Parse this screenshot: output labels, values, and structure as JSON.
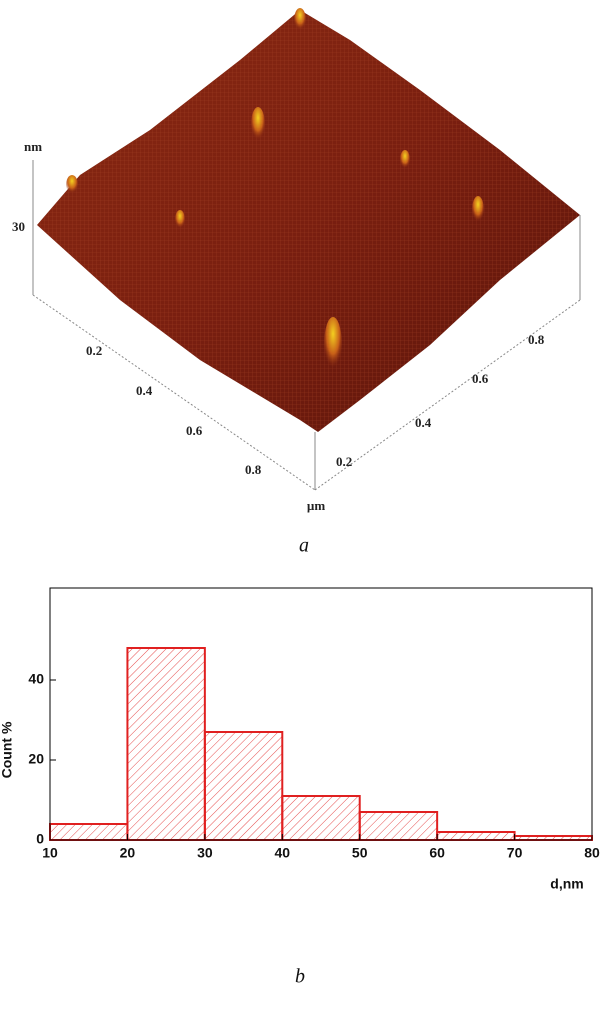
{
  "afm_image": {
    "z_unit": "nm",
    "z_tick": "30",
    "left_ticks": [
      "0.2",
      "0.4",
      "0.6",
      "0.8"
    ],
    "right_ticks": [
      "0.2",
      "0.4",
      "0.6",
      "0.8"
    ],
    "xy_unit": "µm",
    "caption": "a"
  },
  "chart_data": {
    "type": "histogram",
    "caption": "b",
    "x_label": "d,nm",
    "y_label": "Count %",
    "bins": [
      10,
      20,
      30,
      40,
      50,
      60,
      70,
      80
    ],
    "values": [
      4,
      48,
      27,
      11,
      7,
      2,
      1
    ],
    "color": "#e02020",
    "hatch": true,
    "xlim": [
      10,
      80
    ],
    "xticks": [
      10,
      20,
      30,
      40,
      50,
      60,
      70,
      80
    ],
    "ylim": [
      0,
      63
    ],
    "yticks": [
      0,
      20,
      40
    ]
  }
}
